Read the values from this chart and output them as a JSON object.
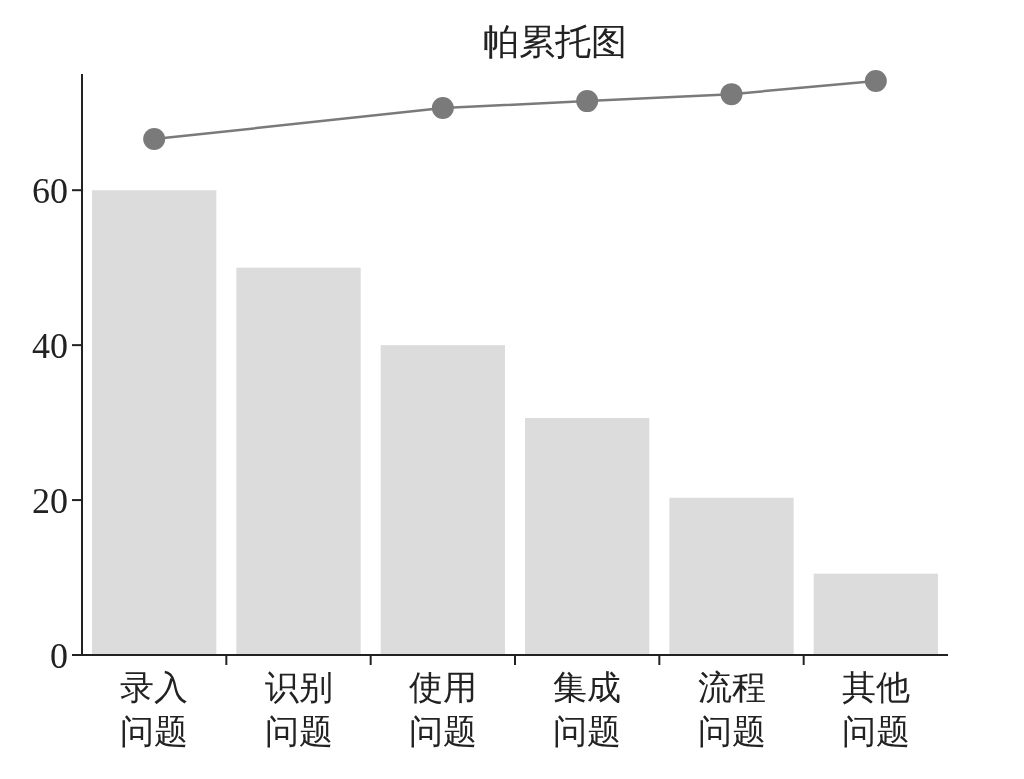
{
  "chart_data": {
    "type": "bar",
    "title": "帕累托图",
    "categories": [
      "录入问题",
      "识别问题",
      "使用问题",
      "集成问题",
      "流程问题",
      "其他问题"
    ],
    "series": [
      {
        "color": "#dcdcdc",
        "values": [
          60,
          50,
          40,
          30.6,
          20.3,
          10.5
        ]
      },
      {
        "type": "line",
        "color": "#7a7a7a",
        "values": [
          66.6,
          null,
          70.6,
          71.5,
          72.4,
          74.1
        ]
      }
    ],
    "ylim": [
      0,
      75
    ],
    "yticks": [
      0,
      20,
      40,
      60
    ],
    "marker": "circle",
    "grid": false
  }
}
